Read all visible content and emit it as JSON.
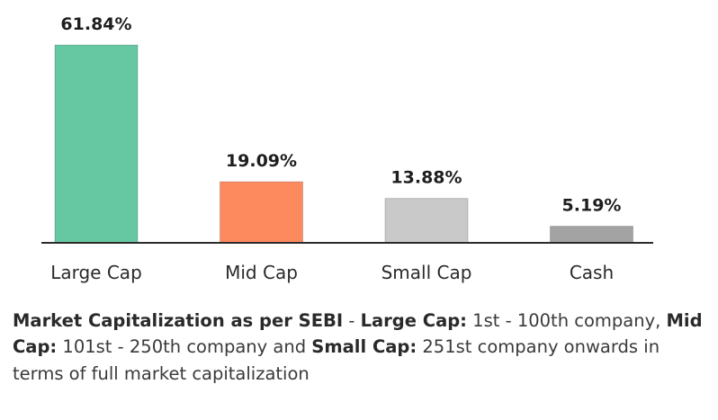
{
  "chart_data": {
    "type": "bar",
    "categories": [
      "Large Cap",
      "Mid Cap",
      "Small Cap",
      "Cash"
    ],
    "values": [
      61.84,
      19.09,
      13.88,
      5.19
    ],
    "value_labels": [
      "61.84%",
      "19.09%",
      "13.88%",
      "5.19%"
    ],
    "colors": [
      "#66c7a3",
      "#fd8a5e",
      "#c9c9c9",
      "#a3a3a3"
    ],
    "ylim": [
      0,
      61.84
    ],
    "grid": false,
    "legend": "none"
  },
  "footnote": {
    "part1_bold": "Market Capitalization as per SEBI",
    "part2": " - ",
    "part3_bold": "Large Cap:",
    "part4": " 1st - 100th company, ",
    "part5_bold": "Mid Cap:",
    "part6": " 101st - 250th company and ",
    "part7_bold": "Small Cap:",
    "part8": " 251st company onwards in terms of full market capitalization"
  }
}
